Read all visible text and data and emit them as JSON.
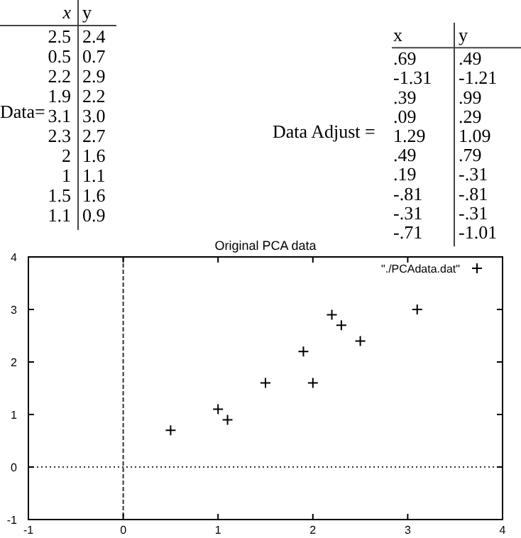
{
  "chart_data": [
    {
      "type": "other",
      "title": "Data=",
      "annotations": [
        "x",
        "y",
        "2.5",
        "2.4",
        "0.5",
        "0.7",
        "2.2",
        "2.9",
        "1.9",
        "2.2",
        "3.1",
        "3.0",
        "2.3",
        "2.7",
        "2",
        "1.6",
        "1",
        "1.1",
        "1.5",
        "1.6",
        "1.1",
        "0.9"
      ]
    },
    {
      "type": "other",
      "title": "Data Adjust =",
      "annotations": [
        "x",
        "y",
        ".69",
        ".49",
        "-1.31",
        "-1.21",
        ".39",
        ".99",
        ".09",
        ".29",
        "1.29",
        "1.09",
        ".49",
        ".79",
        ".19",
        "-.31",
        "-.81",
        "-.81",
        "-.31",
        "-.31",
        "-.71",
        "-1.01"
      ]
    },
    {
      "type": "scatter",
      "title": "Original PCA data",
      "x": [
        2.5,
        0.5,
        2.2,
        1.9,
        3.1,
        2.3,
        2,
        1,
        1.5,
        1.1
      ],
      "series": [
        {
          "name": "\"./PCAdata.dat\"",
          "color": "#000000",
          "values": [
            2.4,
            0.7,
            2.9,
            2.2,
            3.0,
            2.7,
            1.6,
            1.1,
            1.6,
            0.9
          ]
        }
      ],
      "xlim": [
        -1,
        4
      ],
      "ylim": [
        -1,
        4
      ],
      "xticks": [
        -1,
        0,
        1,
        2,
        3,
        4
      ],
      "yticks": [
        -1,
        0,
        1,
        2,
        3,
        4
      ],
      "ref_lines": [
        {
          "axis": "x",
          "value": 0,
          "line_style": "dashed"
        },
        {
          "axis": "y",
          "value": 0,
          "line_style": "dotted"
        }
      ],
      "marker": "cross",
      "legend": "top right",
      "grid": false
    }
  ]
}
